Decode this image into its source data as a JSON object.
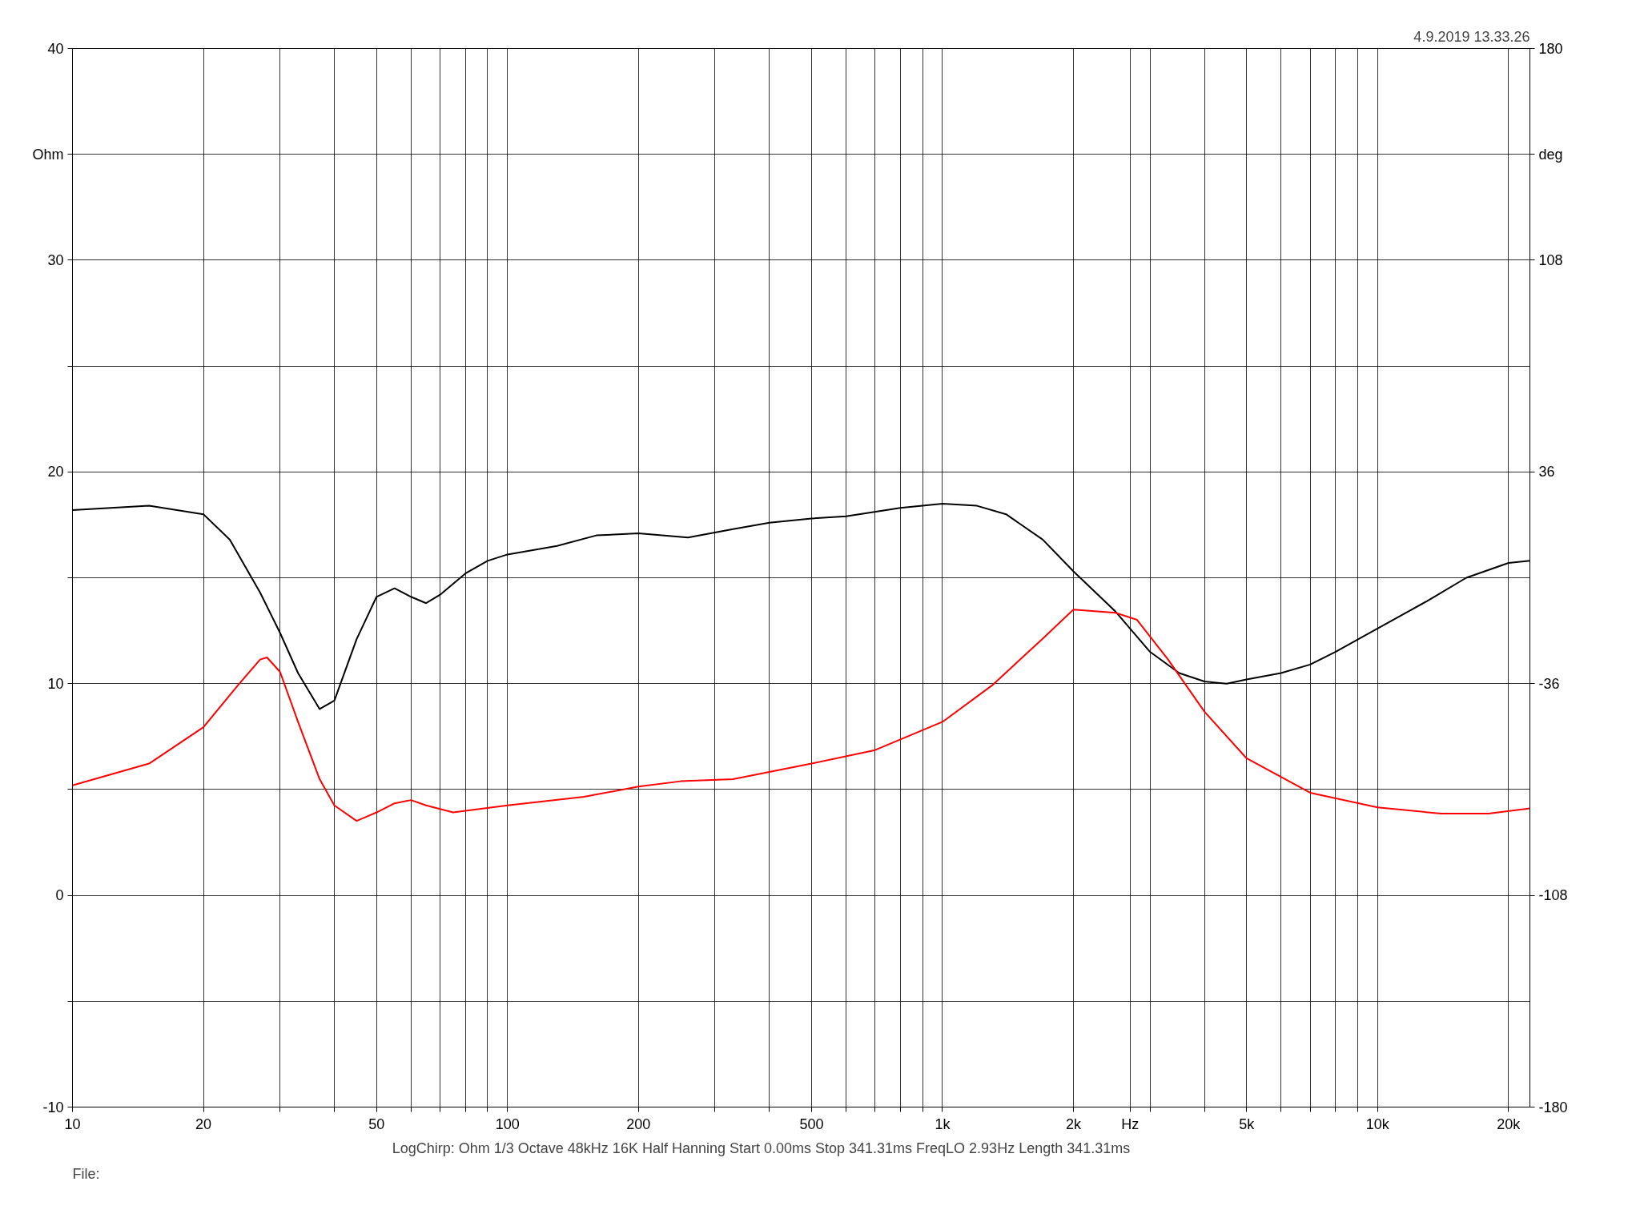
{
  "chart_data": {
    "type": "line",
    "log": "x",
    "grid": true,
    "annotations": [
      "4.9.2019 13.33.26",
      "LogChirp:  Ohm   1/3 Octave   48kHz   16K   Half Hanning   Start 0.00ms    Stop 341.31ms    FreqLO 2.93Hz    Length 341.31ms",
      "File:"
    ],
    "xlim": [
      10,
      22400
    ],
    "xticks": [
      10,
      20,
      {
        "value": 30,
        "label": null
      },
      {
        "value": 40,
        "label": null
      },
      50,
      {
        "value": 60,
        "label": null
      },
      {
        "value": 70,
        "label": null
      },
      {
        "value": 80,
        "label": null
      },
      {
        "value": 90,
        "label": null
      },
      100,
      200,
      {
        "value": 300,
        "label": null
      },
      {
        "value": 400,
        "label": null
      },
      500,
      {
        "value": 600,
        "label": null
      },
      {
        "value": 700,
        "label": null
      },
      {
        "value": 800,
        "label": null
      },
      {
        "value": 900,
        "label": null
      },
      {
        "value": 1000,
        "label": "1k"
      },
      {
        "value": 2000,
        "label": "2k"
      },
      {
        "value": 2700,
        "label": "Hz"
      },
      {
        "value": 3000,
        "label": null
      },
      {
        "value": 4000,
        "label": null
      },
      {
        "value": 5000,
        "label": "5k"
      },
      {
        "value": 6000,
        "label": null
      },
      {
        "value": 7000,
        "label": null
      },
      {
        "value": 8000,
        "label": null
      },
      {
        "value": 9000,
        "label": null
      },
      {
        "value": 10000,
        "label": "10k"
      },
      {
        "value": 20000,
        "label": "20k"
      }
    ],
    "ylim": [
      -10,
      40
    ],
    "yticks": [
      -10,
      {
        "value": -5,
        "label": null
      },
      0,
      {
        "value": 5,
        "label": null
      },
      10,
      {
        "value": 15,
        "label": null
      },
      20,
      {
        "value": 25,
        "label": null
      },
      30,
      {
        "value": 35,
        "label": "Ohm"
      },
      40
    ],
    "y2lim": [
      -180,
      180
    ],
    "y2ticks": [
      -180,
      -108,
      -36,
      36,
      108,
      {
        "value": 144,
        "label": "deg"
      },
      180
    ],
    "series": [
      {
        "color": "#000000",
        "x": [
          10,
          15,
          20,
          23,
          27,
          30,
          33,
          37,
          40,
          45,
          50,
          55,
          60,
          65,
          70,
          80,
          90,
          100,
          130,
          160,
          200,
          260,
          330,
          400,
          500,
          600,
          800,
          1000,
          1200,
          1400,
          1700,
          2000,
          2500,
          3000,
          3500,
          4000,
          4500,
          5000,
          6000,
          7000,
          8000,
          10000,
          13000,
          16000,
          20000,
          22400
        ],
        "values": [
          18.2,
          18.4,
          18.0,
          16.8,
          14.3,
          12.4,
          10.5,
          8.8,
          9.2,
          12.1,
          14.1,
          14.5,
          14.1,
          13.8,
          14.2,
          15.2,
          15.8,
          16.1,
          16.5,
          17.0,
          17.1,
          16.9,
          17.3,
          17.6,
          17.8,
          17.9,
          18.3,
          18.5,
          18.4,
          18.0,
          16.8,
          15.3,
          13.4,
          11.5,
          10.5,
          10.1,
          10.0,
          10.2,
          10.5,
          10.9,
          11.5,
          12.6,
          13.9,
          15.0,
          15.7,
          15.8
        ]
      },
      {
        "color": "#ff0000",
        "axis": "y2",
        "x": [
          10,
          15,
          20,
          24,
          27,
          28,
          30,
          33,
          37,
          40,
          45,
          50,
          55,
          60,
          65,
          75,
          100,
          150,
          200,
          250,
          330,
          500,
          700,
          1000,
          1300,
          1700,
          2000,
          2500,
          2800,
          3300,
          4000,
          5000,
          7000,
          10000,
          14000,
          18000,
          22400
        ],
        "values": [
          -70.6,
          -63.2,
          -50.8,
          -36.6,
          -27.8,
          -27.1,
          -32.0,
          -49.0,
          -68.5,
          -77.4,
          -82.7,
          -79.8,
          -76.7,
          -75.6,
          -77.4,
          -79.8,
          -77.4,
          -74.5,
          -71.0,
          -69.2,
          -68.5,
          -63.2,
          -58.6,
          -49.0,
          -36.6,
          -20.7,
          -10.8,
          -11.9,
          -14.3,
          -27.8,
          -45.5,
          -61.4,
          -73.1,
          -78.1,
          -80.2,
          -80.2,
          -78.4
        ]
      }
    ]
  }
}
